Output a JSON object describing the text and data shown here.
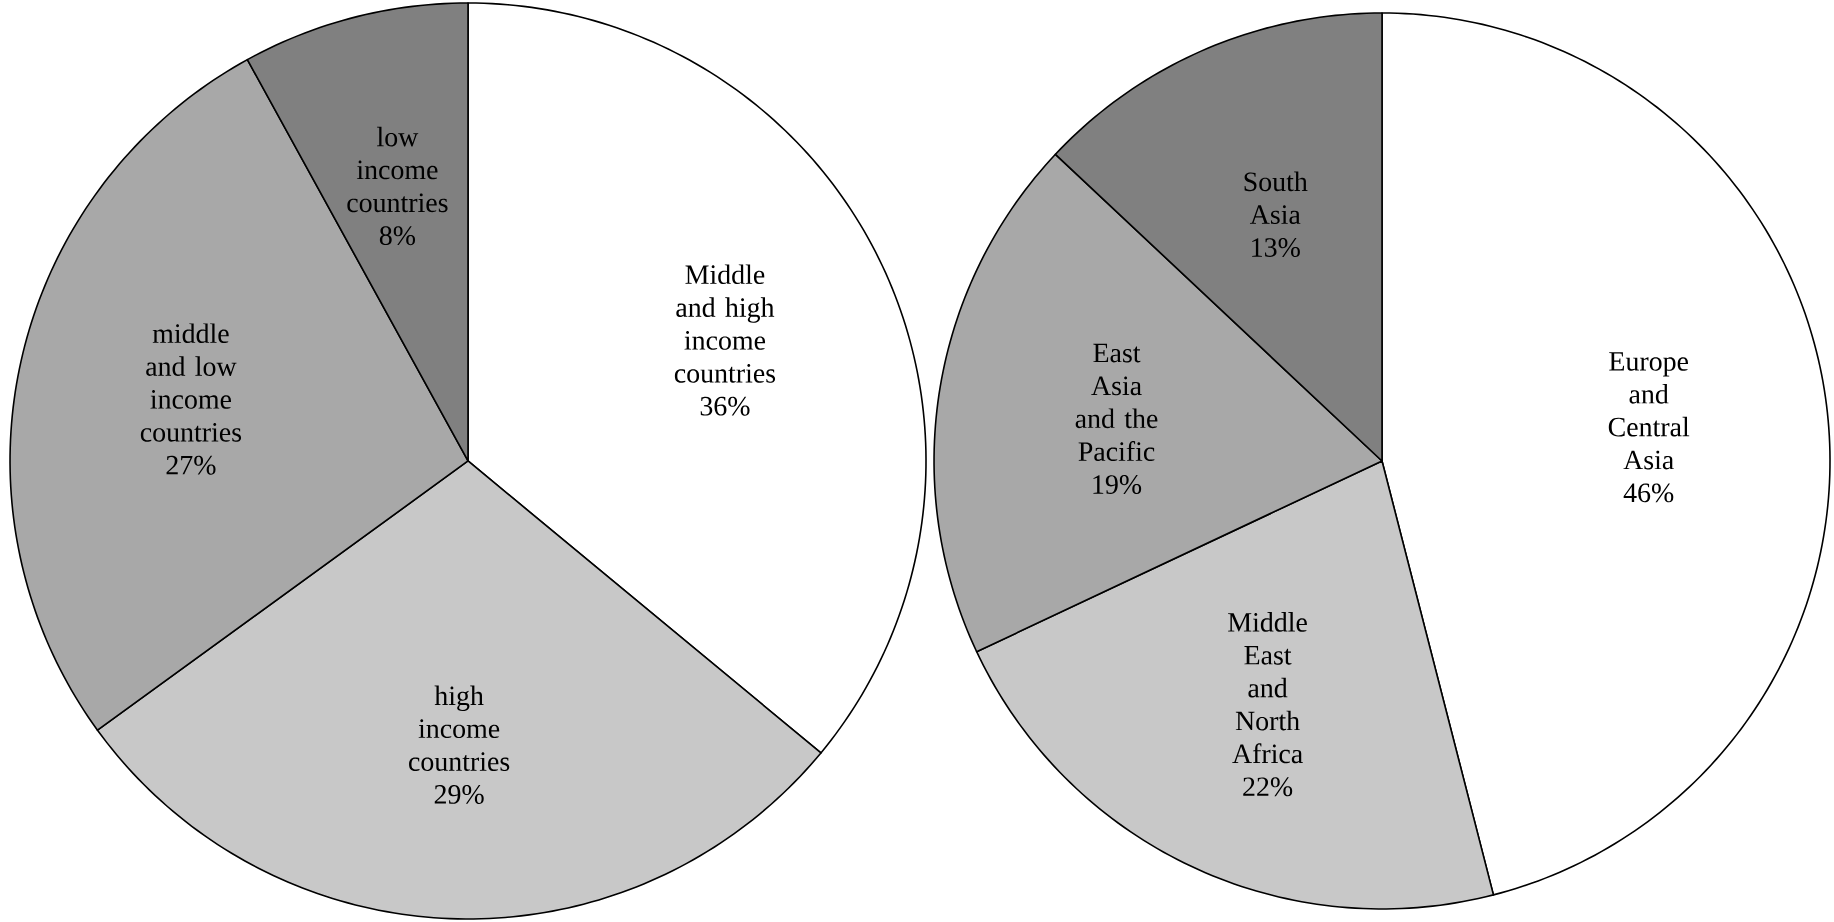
{
  "chart_data": [
    {
      "type": "pie",
      "categories": [
        "Middle and high income countries",
        "high income countries",
        "middle and low income countries",
        "low income countries"
      ],
      "values": [
        36,
        29,
        27,
        8
      ],
      "value_labels": [
        "36%",
        "29%",
        "27%",
        "8%"
      ],
      "colors": [
        "#ffffff",
        "#c8c8c8",
        "#a8a8a8",
        "#808080"
      ]
    },
    {
      "type": "pie",
      "categories": [
        "Europe and Central Asia",
        "Middle East and North Africa",
        "East Asia and the Pacific",
        "South Asia"
      ],
      "values": [
        46,
        22,
        19,
        13
      ],
      "value_labels": [
        "46%",
        "22%",
        "19%",
        "13%"
      ],
      "colors": [
        "#ffffff",
        "#c8c8c8",
        "#a8a8a8",
        "#808080"
      ]
    }
  ]
}
